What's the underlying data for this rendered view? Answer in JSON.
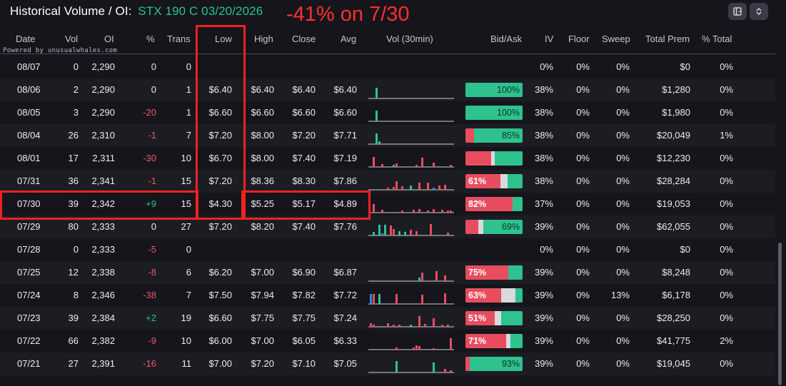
{
  "header": {
    "title": "Historical Volume / OI:",
    "symbol": "STX 190 C 03/20/2026",
    "annotation": "-41% on 7/30",
    "buttons": [
      {
        "icon": "columns-icon"
      },
      {
        "icon": "collapse-expand-icon"
      }
    ]
  },
  "powered_by": "Powered by unusualwhales.com",
  "columns": [
    "Date",
    "Vol",
    "OI",
    "%",
    "Trans",
    "Low",
    "High",
    "Close",
    "Avg",
    "Vol (30min)",
    "Bid/Ask",
    "IV",
    "Floor",
    "Sweep",
    "Total Prem",
    "% Total"
  ],
  "colors": {
    "bid": "#e84d5f",
    "ask": "#2ec28e",
    "mid": "#d9d9de",
    "blue": "#2b8cff",
    "highlight": "#ef2222"
  },
  "rows": [
    {
      "date": "08/07",
      "vol": "0",
      "oi": "2,290",
      "chg": "0",
      "trans": "0",
      "low": "",
      "high": "",
      "close": "",
      "avg": "",
      "bid": 0,
      "mid": 0,
      "ask": 0,
      "ba_label": "",
      "iv": "0%",
      "floor": "0%",
      "sweep": "0%",
      "prem": "$0",
      "ptotal": "0%",
      "bars": []
    },
    {
      "date": "08/06",
      "vol": "2",
      "oi": "2,290",
      "chg": "0",
      "trans": "1",
      "low": "$6.40",
      "high": "$6.40",
      "close": "$6.40",
      "avg": "$6.40",
      "bid": 0,
      "mid": 0,
      "ask": 100,
      "ba_label": "100%",
      "iv": "38%",
      "floor": "0%",
      "sweep": "0%",
      "prem": "$1,280",
      "ptotal": "0%",
      "bars": [
        [
          2,
          15,
          "g"
        ]
      ]
    },
    {
      "date": "08/05",
      "vol": "3",
      "oi": "2,290",
      "chg": "-20",
      "trans": "1",
      "low": "$6.60",
      "high": "$6.60",
      "close": "$6.60",
      "avg": "$6.60",
      "bid": 0,
      "mid": 0,
      "ask": 100,
      "ba_label": "100%",
      "iv": "38%",
      "floor": "0%",
      "sweep": "0%",
      "prem": "$1,980",
      "ptotal": "0%",
      "bars": [
        [
          2,
          15,
          "g"
        ]
      ]
    },
    {
      "date": "08/04",
      "vol": "26",
      "oi": "2,310",
      "chg": "-1",
      "trans": "7",
      "low": "$7.20",
      "high": "$8.00",
      "close": "$7.20",
      "avg": "$7.71",
      "bid": 15,
      "mid": 0,
      "ask": 85,
      "ba_label": "85%",
      "iv": "38%",
      "floor": "0%",
      "sweep": "0%",
      "prem": "$20,049",
      "ptotal": "1%",
      "bars": [
        [
          2,
          15,
          "g"
        ],
        [
          3,
          4,
          "g"
        ]
      ]
    },
    {
      "date": "08/01",
      "vol": "17",
      "oi": "2,311",
      "chg": "-30",
      "trans": "10",
      "low": "$6.70",
      "high": "$8.00",
      "close": "$7.40",
      "avg": "$7.19",
      "bid": 45,
      "mid": 6,
      "ask": 49,
      "ba_label": "",
      "iv": "38%",
      "floor": "0%",
      "sweep": "0%",
      "prem": "$12,230",
      "ptotal": "0%",
      "bars": [
        [
          1,
          14,
          "r"
        ],
        [
          4,
          4,
          "r"
        ],
        [
          8,
          3,
          "g"
        ],
        [
          9,
          5,
          "r"
        ],
        [
          16,
          3,
          "r"
        ],
        [
          18,
          13,
          "r"
        ],
        [
          22,
          6,
          "r"
        ],
        [
          28,
          3,
          "r"
        ]
      ]
    },
    {
      "date": "07/31",
      "vol": "36",
      "oi": "2,341",
      "chg": "-1",
      "trans": "15",
      "low": "$7.20",
      "high": "$8.36",
      "close": "$8.30",
      "avg": "$7.86",
      "bid": 61,
      "mid": 13,
      "ask": 26,
      "ba_label": "61%",
      "iv": "38%",
      "floor": "0%",
      "sweep": "0%",
      "prem": "$28,284",
      "ptotal": "0%",
      "bars": [
        [
          6,
          3,
          "r"
        ],
        [
          8,
          4,
          "r"
        ],
        [
          9,
          12,
          "r"
        ],
        [
          11,
          5,
          "r"
        ],
        [
          14,
          6,
          "g"
        ],
        [
          17,
          10,
          "r"
        ],
        [
          20,
          10,
          "r"
        ],
        [
          22,
          3,
          "b"
        ],
        [
          24,
          6,
          "r"
        ],
        [
          26,
          7,
          "r"
        ]
      ]
    },
    {
      "date": "07/30",
      "vol": "39",
      "oi": "2,342",
      "chg": "+9",
      "trans": "15",
      "low": "$4.30",
      "high": "$5.25",
      "close": "$5.17",
      "avg": "$4.89",
      "bid": 82,
      "mid": 0,
      "ask": 18,
      "ba_label": "82%",
      "iv": "37%",
      "floor": "0%",
      "sweep": "0%",
      "prem": "$19,053",
      "ptotal": "0%",
      "bars": [
        [
          1,
          12,
          "r"
        ],
        [
          4,
          4,
          "r"
        ],
        [
          11,
          3,
          "r"
        ],
        [
          15,
          4,
          "r"
        ],
        [
          17,
          5,
          "r"
        ],
        [
          20,
          3,
          "r"
        ],
        [
          22,
          5,
          "r"
        ],
        [
          25,
          4,
          "r"
        ],
        [
          27,
          3,
          "r"
        ],
        [
          28,
          3,
          "r"
        ]
      ]
    },
    {
      "date": "07/29",
      "vol": "80",
      "oi": "2,333",
      "chg": "0",
      "trans": "27",
      "low": "$7.20",
      "high": "$8.20",
      "close": "$7.40",
      "avg": "$7.76",
      "bid": 22,
      "mid": 9,
      "ask": 69,
      "ba_label": "69%",
      "iv": "39%",
      "floor": "0%",
      "sweep": "0%",
      "prem": "$62,055",
      "ptotal": "0%",
      "bars": [
        [
          1,
          5,
          "g"
        ],
        [
          3,
          15,
          "g"
        ],
        [
          4,
          3,
          "b"
        ],
        [
          5,
          15,
          "g"
        ],
        [
          7,
          14,
          "r"
        ],
        [
          8,
          9,
          "r"
        ],
        [
          10,
          6,
          "g"
        ],
        [
          12,
          5,
          "g"
        ],
        [
          14,
          8,
          "r"
        ],
        [
          16,
          6,
          "r"
        ],
        [
          21,
          16,
          "r"
        ],
        [
          27,
          4,
          "r"
        ]
      ]
    },
    {
      "date": "07/28",
      "vol": "0",
      "oi": "2,333",
      "chg": "-5",
      "trans": "0",
      "low": "",
      "high": "",
      "close": "",
      "avg": "",
      "bid": 0,
      "mid": 0,
      "ask": 0,
      "ba_label": "",
      "iv": "0%",
      "floor": "0%",
      "sweep": "0%",
      "prem": "$0",
      "ptotal": "0%",
      "bars": []
    },
    {
      "date": "07/25",
      "vol": "12",
      "oi": "2,338",
      "chg": "-8",
      "trans": "6",
      "low": "$6.20",
      "high": "$7.00",
      "close": "$6.90",
      "avg": "$6.87",
      "bid": 75,
      "mid": 0,
      "ask": 25,
      "ba_label": "75%",
      "iv": "39%",
      "floor": "0%",
      "sweep": "0%",
      "prem": "$8,248",
      "ptotal": "0%",
      "bars": [
        [
          17,
          5,
          "g"
        ],
        [
          18,
          12,
          "r"
        ],
        [
          23,
          14,
          "r"
        ],
        [
          26,
          8,
          "r"
        ]
      ]
    },
    {
      "date": "07/24",
      "vol": "8",
      "oi": "2,346",
      "chg": "-38",
      "trans": "7",
      "low": "$7.50",
      "high": "$7.94",
      "close": "$7.82",
      "avg": "$7.72",
      "bid": 63,
      "mid": 25,
      "ask": 12,
      "ba_label": "63%",
      "iv": "39%",
      "floor": "0%",
      "sweep": "13%",
      "prem": "$6,178",
      "ptotal": "0%",
      "bars": [
        [
          0,
          14,
          "b"
        ],
        [
          1,
          14,
          "r"
        ],
        [
          3,
          14,
          "g"
        ],
        [
          9,
          14,
          "r"
        ],
        [
          18,
          13,
          "r"
        ],
        [
          26,
          15,
          "r"
        ]
      ]
    },
    {
      "date": "07/23",
      "vol": "39",
      "oi": "2,384",
      "chg": "+2",
      "trans": "19",
      "low": "$6.60",
      "high": "$7.75",
      "close": "$7.75",
      "avg": "$7.24",
      "bid": 51,
      "mid": 12,
      "ask": 37,
      "ba_label": "51%",
      "iv": "39%",
      "floor": "0%",
      "sweep": "0%",
      "prem": "$28,250",
      "ptotal": "0%",
      "bars": [
        [
          0,
          5,
          "r"
        ],
        [
          1,
          3,
          "r"
        ],
        [
          6,
          5,
          "r"
        ],
        [
          8,
          3,
          "r"
        ],
        [
          10,
          3,
          "r"
        ],
        [
          14,
          3,
          "g"
        ],
        [
          17,
          15,
          "r"
        ],
        [
          19,
          4,
          "r"
        ],
        [
          22,
          12,
          "r"
        ],
        [
          25,
          3,
          "r"
        ],
        [
          27,
          3,
          "r"
        ]
      ]
    },
    {
      "date": "07/22",
      "vol": "66",
      "oi": "2,382",
      "chg": "-9",
      "trans": "10",
      "low": "$6.00",
      "high": "$7.00",
      "close": "$6.05",
      "avg": "$6.33",
      "bid": 71,
      "mid": 8,
      "ask": 21,
      "ba_label": "71%",
      "iv": "39%",
      "floor": "0%",
      "sweep": "0%",
      "prem": "$41,775",
      "ptotal": "2%",
      "bars": [
        [
          9,
          3,
          "r"
        ],
        [
          15,
          3,
          "r"
        ],
        [
          16,
          6,
          "r"
        ],
        [
          17,
          5,
          "r"
        ],
        [
          22,
          2,
          "r"
        ],
        [
          28,
          16,
          "r"
        ]
      ]
    },
    {
      "date": "07/21",
      "vol": "27",
      "oi": "2,391",
      "chg": "-16",
      "trans": "11",
      "low": "$7.00",
      "high": "$7.20",
      "close": "$7.10",
      "avg": "$7.05",
      "bid": 7,
      "mid": 0,
      "ask": 93,
      "ba_label": "93%",
      "iv": "39%",
      "floor": "0%",
      "sweep": "0%",
      "prem": "$19,045",
      "ptotal": "0%",
      "bars": [
        [
          9,
          16,
          "g"
        ],
        [
          22,
          14,
          "g"
        ],
        [
          26,
          5,
          "r"
        ],
        [
          28,
          3,
          "r"
        ]
      ]
    }
  ]
}
